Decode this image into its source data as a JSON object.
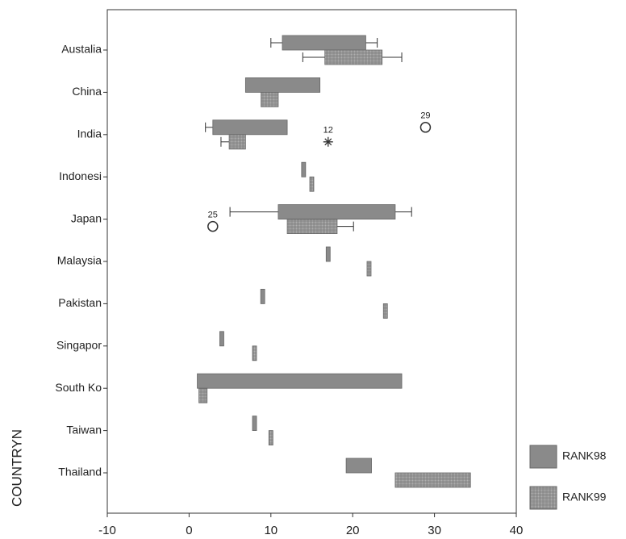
{
  "chart_data": {
    "type": "boxplot",
    "orientation": "horizontal",
    "y_label": "COUNTRYN",
    "categories": [
      "Austalia",
      "China",
      "India",
      "Indonesi",
      "Japan",
      "Malaysia",
      "Pakistan",
      "Singapor",
      "South Ko",
      "Taiwan",
      "Thailand"
    ],
    "xlim": [
      -10,
      40
    ],
    "xticks": [
      -10,
      0,
      10,
      20,
      30,
      40
    ],
    "series": [
      {
        "name": "RANK98",
        "color": "#8a8a8a",
        "hatch": false,
        "boxes": [
          {
            "min": 10,
            "q1": 11.4,
            "q3": 21.6,
            "max": 23
          },
          {
            "min": null,
            "q1": 6.9,
            "q3": 16,
            "max": null
          },
          {
            "min": 2,
            "q1": 2.9,
            "q3": 12,
            "max": null
          },
          {
            "min": null,
            "q1": 14,
            "q3": 14,
            "max": null
          },
          {
            "min": 5,
            "q1": 10.9,
            "q3": 25.2,
            "max": 27.2
          },
          {
            "min": null,
            "q1": 17,
            "q3": 17,
            "max": null
          },
          {
            "min": null,
            "q1": 9,
            "q3": 9,
            "max": null
          },
          {
            "min": null,
            "q1": 4,
            "q3": 4,
            "max": null
          },
          {
            "min": null,
            "q1": 1,
            "q3": 26,
            "max": null
          },
          {
            "min": null,
            "q1": 8,
            "q3": 8,
            "max": null
          },
          {
            "min": null,
            "q1": 19.2,
            "q3": 22.3,
            "max": null
          }
        ],
        "outliers": [
          {
            "category": 2,
            "value": 28.9,
            "label": "29",
            "marker": "circle"
          }
        ]
      },
      {
        "name": "RANK99",
        "color": "#a0a0a0",
        "hatch": true,
        "boxes": [
          {
            "min": 13.9,
            "q1": 16.6,
            "q3": 23.6,
            "max": 26
          },
          {
            "min": null,
            "q1": 8.8,
            "q3": 10.9,
            "max": null
          },
          {
            "min": 3.9,
            "q1": 4.9,
            "q3": 6.9,
            "max": null
          },
          {
            "min": null,
            "q1": 15,
            "q3": 15,
            "max": null
          },
          {
            "min": null,
            "q1": 12,
            "q3": 18.1,
            "max": 20.1
          },
          {
            "min": null,
            "q1": 22,
            "q3": 22,
            "max": null
          },
          {
            "min": null,
            "q1": 24,
            "q3": 24,
            "max": null
          },
          {
            "min": null,
            "q1": 8,
            "q3": 8,
            "max": null
          },
          {
            "min": null,
            "q1": 1.2,
            "q3": 2.2,
            "max": null
          },
          {
            "min": null,
            "q1": 10,
            "q3": 10,
            "max": null
          },
          {
            "min": null,
            "q1": 25.2,
            "q3": 34.4,
            "max": null
          }
        ],
        "outliers": [
          {
            "category": 2,
            "value": 17,
            "label": "12",
            "marker": "asterisk"
          },
          {
            "category": 4,
            "value": 2.9,
            "label": "25",
            "marker": "circle"
          }
        ]
      }
    ]
  }
}
